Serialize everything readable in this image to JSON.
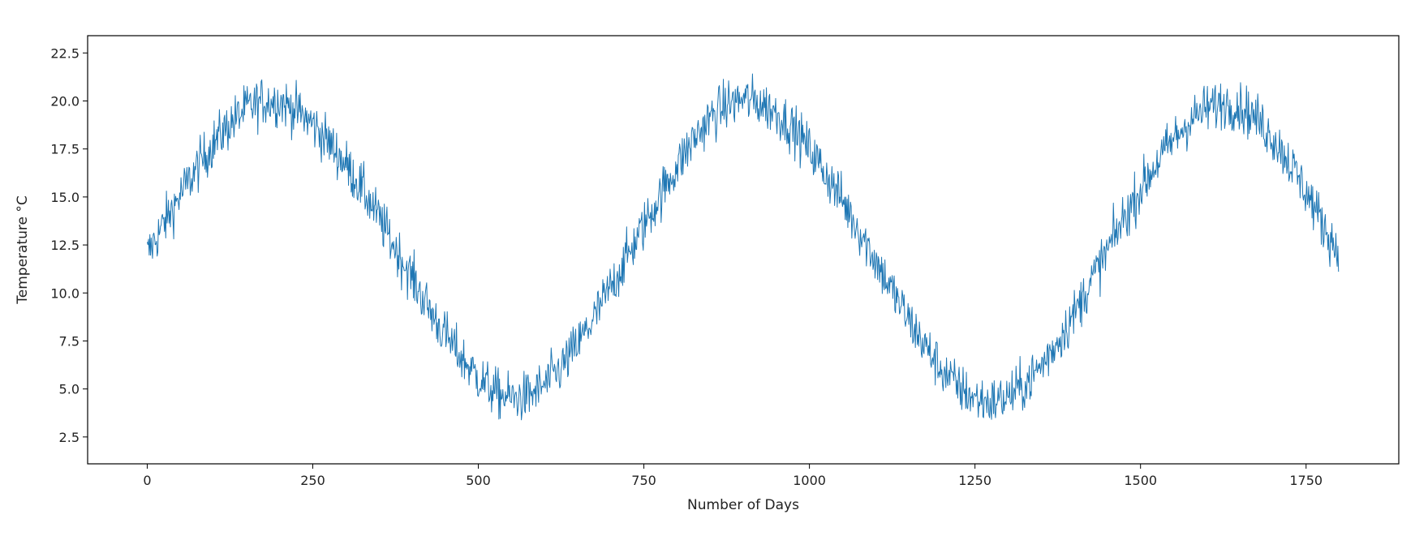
{
  "chart_data": {
    "type": "line",
    "title": "",
    "xlabel": "Number of Days",
    "ylabel": "Temperature °C",
    "xlim": [
      -90,
      1890
    ],
    "ylim": [
      1.1,
      23.4
    ],
    "xticks": [
      0,
      250,
      500,
      750,
      1000,
      1250,
      1500,
      1750
    ],
    "xtick_labels": [
      "0",
      "250",
      "500",
      "750",
      "1000",
      "1250",
      "1500",
      "1750"
    ],
    "yticks": [
      2.5,
      5.0,
      7.5,
      10.0,
      12.5,
      15.0,
      17.5,
      20.0,
      22.5
    ],
    "ytick_labels": [
      "2.5",
      "5.0",
      "7.5",
      "10.0",
      "12.5",
      "15.0",
      "17.5",
      "20.0",
      "22.5"
    ],
    "grid": false,
    "legend": "none",
    "line_color": "#1f77b4",
    "series": [
      {
        "x": [
          0,
          25,
          50,
          75,
          100,
          125,
          150,
          175,
          200,
          225,
          250,
          275,
          300,
          325,
          350,
          375,
          400,
          425,
          450,
          475,
          500,
          525,
          550,
          575,
          600,
          625,
          650,
          675,
          700,
          725,
          750,
          775,
          800,
          825,
          850,
          875,
          900,
          925,
          950,
          975,
          1000,
          1025,
          1050,
          1075,
          1100,
          1125,
          1150,
          1175,
          1200,
          1225,
          1250,
          1275,
          1300,
          1325,
          1350,
          1375,
          1400,
          1425,
          1450,
          1475,
          1500,
          1525,
          1550,
          1575,
          1600,
          1625,
          1650,
          1675,
          1700,
          1725,
          1750,
          1775,
          1799
        ],
        "y": [
          12.0,
          13.6,
          15.1,
          16.5,
          17.8,
          18.8,
          19.6,
          20.0,
          20.0,
          19.5,
          18.8,
          17.8,
          16.7,
          15.4,
          13.9,
          12.3,
          10.8,
          9.2,
          7.8,
          6.6,
          5.6,
          4.8,
          4.5,
          4.6,
          5.2,
          6.1,
          7.3,
          8.7,
          10.3,
          11.9,
          13.5,
          15.1,
          16.6,
          18.0,
          19.1,
          19.8,
          20.1,
          19.9,
          19.4,
          18.6,
          17.5,
          16.2,
          14.8,
          13.3,
          11.7,
          10.1,
          8.6,
          7.2,
          6.0,
          5.1,
          4.5,
          4.3,
          4.6,
          5.2,
          6.2,
          7.5,
          8.9,
          10.6,
          12.2,
          13.9,
          15.4,
          16.8,
          18.0,
          19.0,
          19.6,
          19.9,
          19.7,
          19.1,
          18.1,
          16.8,
          15.3,
          13.6,
          12.1
        ]
      }
    ]
  }
}
